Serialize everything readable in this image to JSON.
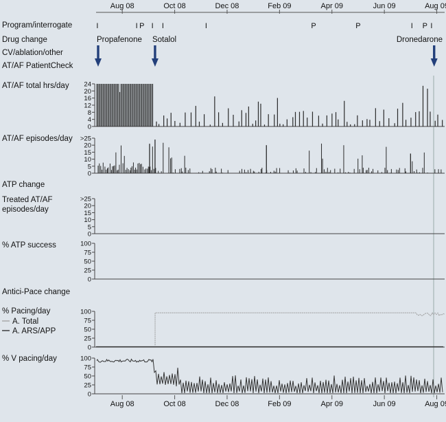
{
  "chart_data": {
    "type": "bar",
    "title": "",
    "x_months": [
      "Aug 08",
      "Oct 08",
      "Dec 08",
      "Feb 09",
      "Apr 09",
      "Jun 09",
      "Aug 09"
    ],
    "row_labels": {
      "interrogate": "Program/interrogate",
      "drug": "Drug change",
      "cv": "CV/ablation/other",
      "patientcheck": "AT/AF PatientCheck",
      "total_hrs": "AT/AF total hrs/day",
      "episodes": "AT/AF episodes/day",
      "atp_change": "ATP change",
      "treated_1": "Treated AT/AF",
      "treated_2": "episodes/day",
      "atp_success": "% ATP success",
      "antici": "Antici-Pace change",
      "pacing": "% Pacing/day",
      "vpacing": "% V pacing/day"
    },
    "interrogate_marks": [
      {
        "label": "I",
        "month": 0.05
      },
      {
        "label": "I",
        "month": 1.55
      },
      {
        "label": "P",
        "month": 1.75
      },
      {
        "label": "I",
        "month": 2.15
      },
      {
        "label": "I",
        "month": 2.55
      },
      {
        "label": "I",
        "month": 4.2
      },
      {
        "label": "P",
        "month": 8.3
      },
      {
        "label": "P",
        "month": 10.0
      },
      {
        "label": "I",
        "month": 12.05
      },
      {
        "label": "P",
        "month": 12.55
      },
      {
        "label": "I",
        "month": 12.8
      }
    ],
    "drug_changes": [
      {
        "name": "Propafenone",
        "month": -0.3
      },
      {
        "name": "Sotalol",
        "month": 2.25
      },
      {
        "name": "Dronedarone",
        "month": 12.9
      }
    ],
    "total_hrs_ticks": [
      "24",
      "20",
      "16",
      "12",
      "8",
      "4",
      "0"
    ],
    "episodes_ticks": [
      ">25",
      "20",
      "15",
      "10",
      "5",
      "0"
    ],
    "treated_ticks": [
      ">25",
      "20",
      "15",
      "10",
      "5",
      "0"
    ],
    "atp_ticks": [
      "100",
      "75",
      "50",
      "25",
      "0"
    ],
    "pacing_ticks": [
      "100",
      "75",
      "50",
      "25",
      "0"
    ],
    "vpacing_ticks": [
      "100",
      "75",
      "50",
      "25",
      "0"
    ],
    "legend": [
      {
        "name": "A. Total",
        "color": "#9a9a9a"
      },
      {
        "name": "A. ARS/APP",
        "color": "#333333"
      }
    ],
    "series_summary": {
      "af_total_hrs_before_sotalol": 24,
      "af_total_hrs_after_sotalol_typical_max": 12,
      "episodes_peak": 24,
      "a_total_pacing_after_sotalol": 96,
      "v_pacing_before_sotalol": 93,
      "v_pacing_after_sotalol_mean": 22
    },
    "colors": {
      "bars": "#2a2a2a",
      "arrow": "#223f7a",
      "background": "#dfe5eb"
    }
  }
}
